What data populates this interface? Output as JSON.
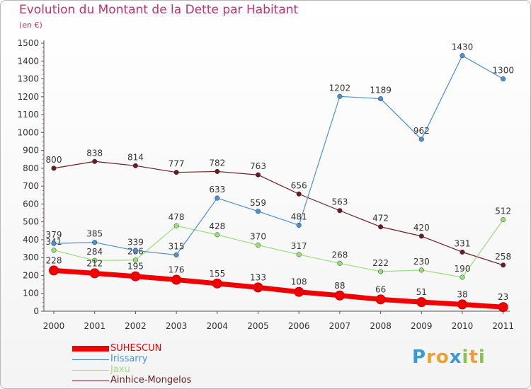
{
  "title": "Evolution du Montant de la Dette par Habitant",
  "subtitle": "(en €)",
  "brand": {
    "letters": [
      "P",
      "r",
      "o",
      "x",
      "i",
      "t",
      "i"
    ],
    "colors": [
      "#3a9ad9",
      "#f0a030",
      "#f0a030",
      "#3a9ad9",
      "#8bc34a",
      "#f0a030",
      "#8bc34a"
    ]
  },
  "chart_data": {
    "type": "line",
    "x": [
      "2000",
      "2001",
      "2002",
      "2003",
      "2004",
      "2005",
      "2006",
      "2007",
      "2008",
      "2009",
      "2010",
      "2011"
    ],
    "ylim": [
      0,
      1500
    ],
    "yticks": [
      "0",
      "100",
      "200",
      "300",
      "400",
      "500",
      "600",
      "700",
      "800",
      "900",
      "1000",
      "1100",
      "1200",
      "1300",
      "1400",
      "1500"
    ],
    "grid": false,
    "legend_position": "bottom-left",
    "series": [
      {
        "name": "Ainhice-Mongelos",
        "color": "#6b1c22",
        "values": [
          800,
          838,
          814,
          777,
          782,
          763,
          656,
          563,
          472,
          420,
          331,
          258
        ]
      },
      {
        "name": "Jaxu",
        "color": "#99e07a",
        "values": [
          341,
          284,
          286,
          478,
          428,
          370,
          317,
          268,
          222,
          230,
          190,
          512
        ]
      },
      {
        "name": "Irissarry",
        "color": "#4c90cf",
        "values": [
          379,
          385,
          339,
          315,
          633,
          559,
          481,
          1202,
          1189,
          962,
          1430,
          1300
        ]
      },
      {
        "name": "SUHESCUN",
        "color": "#f00000",
        "values": [
          228,
          212,
          195,
          176,
          155,
          133,
          108,
          88,
          66,
          51,
          38,
          23
        ]
      }
    ]
  },
  "legend": [
    {
      "name": "SUHESCUN",
      "color": "#f00000"
    },
    {
      "name": "Irissarry",
      "color": "#4c90cf"
    },
    {
      "name": "Jaxu",
      "color": "#99e07a"
    },
    {
      "name": "Ainhice-Mongelos",
      "color": "#6b1c22"
    }
  ]
}
